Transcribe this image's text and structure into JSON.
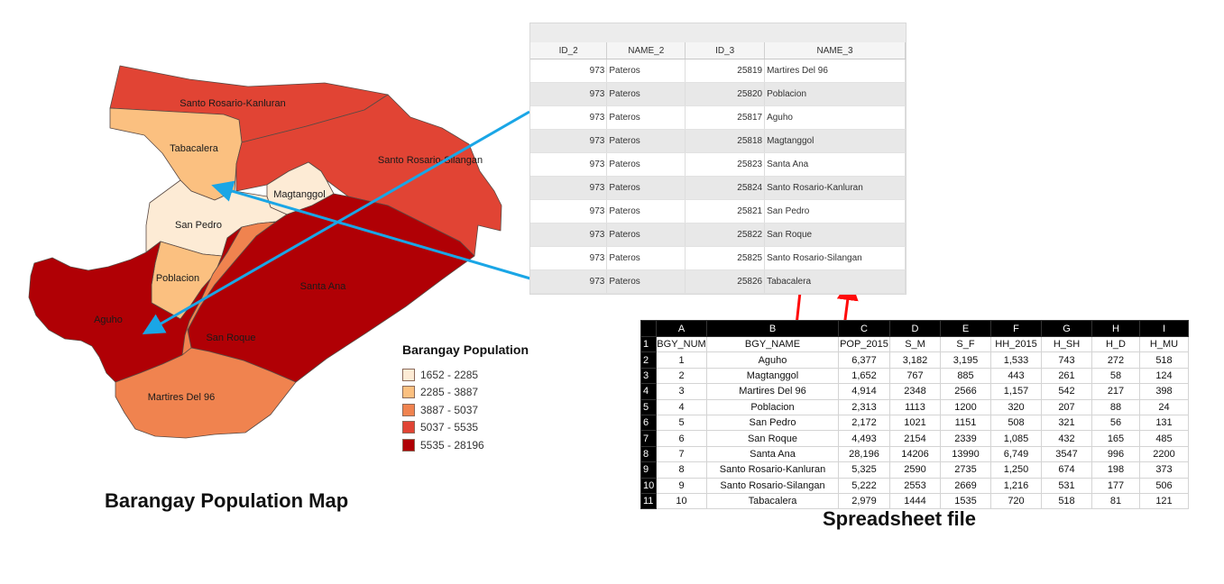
{
  "map": {
    "caption": "Barangay Population Map",
    "barangays": [
      {
        "name": "Santo Rosario-Kanluran",
        "class": 4
      },
      {
        "name": "Tabacalera",
        "class": 2
      },
      {
        "name": "Santo Rosario-Silangan",
        "class": 4
      },
      {
        "name": "Magtanggol",
        "class": 1
      },
      {
        "name": "San Pedro",
        "class": 1
      },
      {
        "name": "Poblacion",
        "class": 2
      },
      {
        "name": "Santa Ana",
        "class": 5
      },
      {
        "name": "Aguho",
        "class": 5
      },
      {
        "name": "San Roque",
        "class": 3
      },
      {
        "name": "Martires Del 96",
        "class": 3
      }
    ],
    "legend": {
      "title": "Barangay Population",
      "items": [
        {
          "label": "1652 - 2285",
          "color": "#fdebd5"
        },
        {
          "label": "2285 - 3887",
          "color": "#fbc080"
        },
        {
          "label": "3887 - 5037",
          "color": "#f0834f"
        },
        {
          "label": "5037 - 5535",
          "color": "#e14434"
        },
        {
          "label": "5535 - 28196",
          "color": "#b00005"
        }
      ]
    }
  },
  "attribute_table": {
    "columns": [
      "ID_2",
      "NAME_2",
      "ID_3",
      "NAME_3"
    ],
    "rows": [
      [
        "973",
        "Pateros",
        "25819",
        "Martires Del 96"
      ],
      [
        "973",
        "Pateros",
        "25820",
        "Poblacion"
      ],
      [
        "973",
        "Pateros",
        "25817",
        "Aguho"
      ],
      [
        "973",
        "Pateros",
        "25818",
        "Magtanggol"
      ],
      [
        "973",
        "Pateros",
        "25823",
        "Santa Ana"
      ],
      [
        "973",
        "Pateros",
        "25824",
        "Santo Rosario-Kanluran"
      ],
      [
        "973",
        "Pateros",
        "25821",
        "San Pedro"
      ],
      [
        "973",
        "Pateros",
        "25822",
        "San Roque"
      ],
      [
        "973",
        "Pateros",
        "25825",
        "Santo Rosario-Silangan"
      ],
      [
        "973",
        "Pateros",
        "25826",
        "Tabacalera"
      ]
    ]
  },
  "spreadsheet": {
    "caption": "Spreadsheet file",
    "column_letters": [
      "A",
      "B",
      "C",
      "D",
      "E",
      "F",
      "G",
      "H",
      "I"
    ],
    "header": [
      "BGY_NUM",
      "BGY_NAME",
      "POP_2015",
      "S_M",
      "S_F",
      "HH_2015",
      "H_SH",
      "H_D",
      "H_MU"
    ],
    "rows": [
      [
        "1",
        "Aguho",
        "6,377",
        "3,182",
        "3,195",
        "1,533",
        "743",
        "272",
        "518"
      ],
      [
        "2",
        "Magtanggol",
        "1,652",
        "767",
        "885",
        "443",
        "261",
        "58",
        "124"
      ],
      [
        "3",
        "Martires Del 96",
        "4,914",
        "2348",
        "2566",
        "1,157",
        "542",
        "217",
        "398"
      ],
      [
        "4",
        "Poblacion",
        "2,313",
        "1113",
        "1200",
        "320",
        "207",
        "88",
        "24"
      ],
      [
        "5",
        "San Pedro",
        "2,172",
        "1021",
        "1151",
        "508",
        "321",
        "56",
        "131"
      ],
      [
        "6",
        "San Roque",
        "4,493",
        "2154",
        "2339",
        "1,085",
        "432",
        "165",
        "485"
      ],
      [
        "7",
        "Santa Ana",
        "28,196",
        "14206",
        "13990",
        "6,749",
        "3547",
        "996",
        "2200"
      ],
      [
        "8",
        "Santo Rosario-Kanluran",
        "5,325",
        "2590",
        "2735",
        "1,250",
        "674",
        "198",
        "373"
      ],
      [
        "9",
        "Santo Rosario-Silangan",
        "5,222",
        "2553",
        "2669",
        "1,216",
        "531",
        "177",
        "506"
      ],
      [
        "10",
        "Tabacalera",
        "2,979",
        "1444",
        "1535",
        "720",
        "518",
        "81",
        "121"
      ]
    ]
  },
  "connector_colors": {
    "blue": "#1aa6e6",
    "red": "#ff0a0a"
  }
}
